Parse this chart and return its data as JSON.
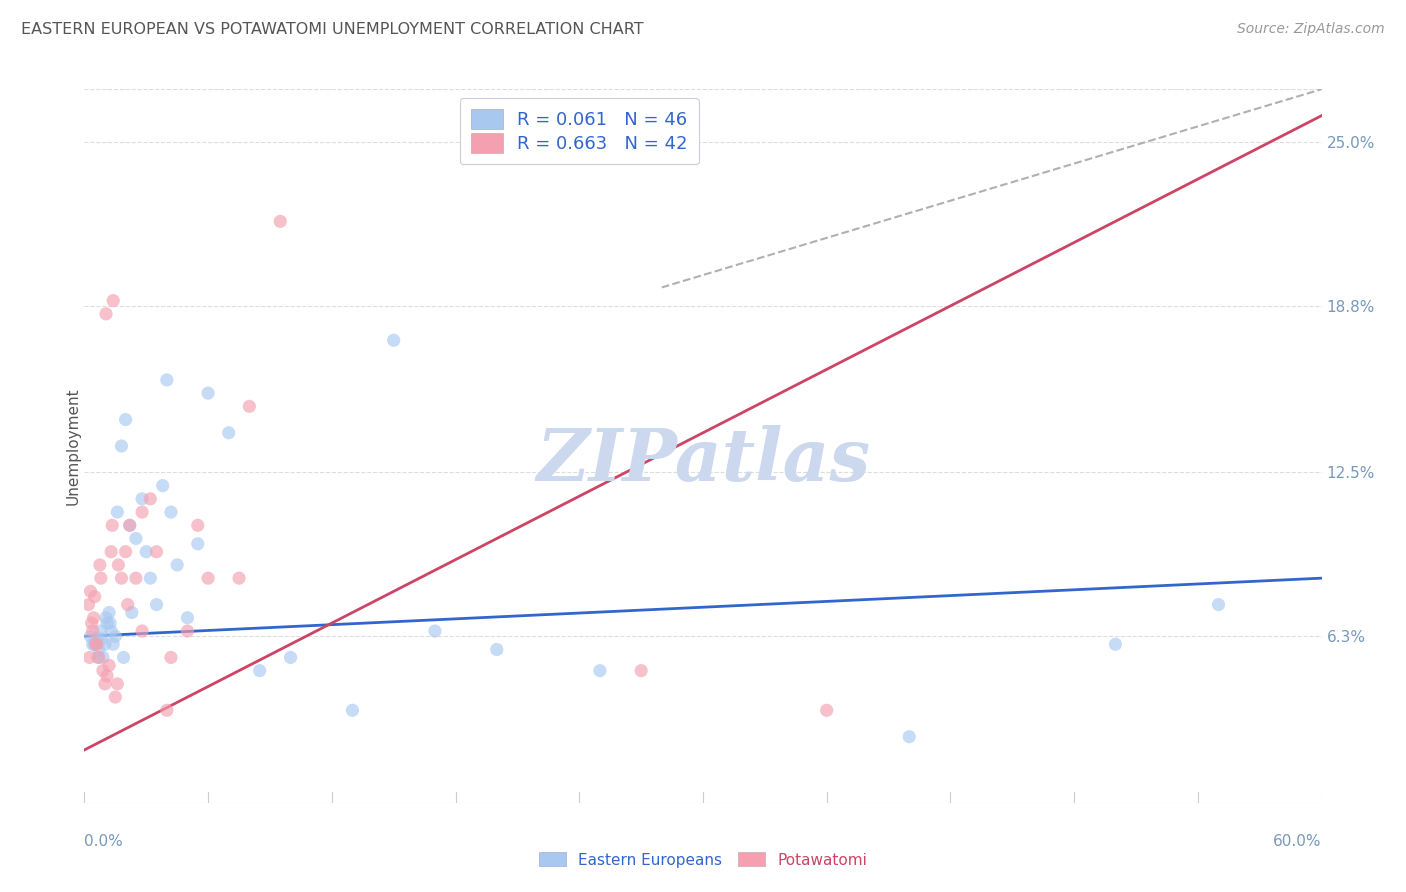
{
  "title": "EASTERN EUROPEAN VS POTAWATOMI UNEMPLOYMENT CORRELATION CHART",
  "source": "Source: ZipAtlas.com",
  "ylabel": "Unemployment",
  "ytick_values": [
    6.3,
    12.5,
    18.8,
    25.0
  ],
  "ytick_labels": [
    "6.3%",
    "12.5%",
    "18.8%",
    "25.0%"
  ],
  "xlim": [
    0.0,
    60.0
  ],
  "ylim": [
    0.0,
    27.0
  ],
  "legend_blue_label": "R = 0.061   N = 46",
  "legend_pink_label": "R = 0.663   N = 42",
  "legend_label_blue": "Eastern Europeans",
  "legend_label_pink": "Potawatomi",
  "blue_scatter_x": [
    0.3,
    0.5,
    0.6,
    0.7,
    0.8,
    0.9,
    1.0,
    1.1,
    1.2,
    1.3,
    1.4,
    1.5,
    1.6,
    1.8,
    2.0,
    2.2,
    2.5,
    2.8,
    3.0,
    3.2,
    3.5,
    3.8,
    4.0,
    4.2,
    4.5,
    5.0,
    5.5,
    6.0,
    7.0,
    8.5,
    10.0,
    13.0,
    15.0,
    17.0,
    20.0,
    25.0,
    40.0,
    50.0,
    55.0,
    0.4,
    0.65,
    0.85,
    1.05,
    1.25,
    1.9,
    2.3
  ],
  "blue_scatter_y": [
    6.3,
    6.0,
    6.2,
    5.8,
    6.5,
    5.5,
    6.0,
    6.8,
    7.2,
    6.5,
    6.0,
    6.3,
    11.0,
    13.5,
    14.5,
    10.5,
    10.0,
    11.5,
    9.5,
    8.5,
    7.5,
    12.0,
    16.0,
    11.0,
    9.0,
    7.0,
    9.8,
    15.5,
    14.0,
    5.0,
    5.5,
    3.5,
    17.5,
    6.5,
    5.8,
    5.0,
    2.5,
    6.0,
    7.5,
    6.0,
    5.5,
    6.2,
    7.0,
    6.8,
    5.5,
    7.2
  ],
  "pink_scatter_x": [
    0.2,
    0.3,
    0.4,
    0.5,
    0.6,
    0.7,
    0.8,
    0.9,
    1.0,
    1.1,
    1.2,
    1.3,
    1.4,
    1.5,
    1.6,
    1.8,
    2.0,
    2.2,
    2.5,
    2.8,
    3.2,
    3.5,
    4.0,
    5.0,
    5.5,
    7.5,
    9.5,
    27.0,
    36.0,
    0.35,
    0.55,
    0.75,
    1.05,
    1.35,
    1.65,
    2.1,
    2.8,
    4.2,
    6.0,
    8.0,
    0.25,
    0.45
  ],
  "pink_scatter_y": [
    7.5,
    8.0,
    6.5,
    7.8,
    6.0,
    5.5,
    8.5,
    5.0,
    4.5,
    4.8,
    5.2,
    9.5,
    19.0,
    4.0,
    4.5,
    8.5,
    9.5,
    10.5,
    8.5,
    11.0,
    11.5,
    9.5,
    3.5,
    6.5,
    10.5,
    8.5,
    22.0,
    5.0,
    3.5,
    6.8,
    6.0,
    9.0,
    18.5,
    10.5,
    9.0,
    7.5,
    6.5,
    5.5,
    8.5,
    15.0,
    5.5,
    7.0
  ],
  "blue_line_x": [
    0.0,
    60.0
  ],
  "blue_line_y": [
    6.3,
    8.5
  ],
  "pink_line_x": [
    0.0,
    60.0
  ],
  "pink_line_y": [
    2.0,
    26.0
  ],
  "diag_line_x": [
    28.0,
    60.0
  ],
  "diag_line_y": [
    19.5,
    27.0
  ],
  "blue_color": "#a8c8f0",
  "pink_color": "#f4a0b0",
  "blue_line_color": "#3366cc",
  "pink_line_color": "#cc4466",
  "diag_line_color": "#b0b0b0",
  "background_color": "#ffffff",
  "grid_color": "#dddddd",
  "title_color": "#555555",
  "axis_label_color": "#7799bb",
  "watermark_color": "#ccd8ee",
  "scatter_size": 90,
  "scatter_alpha": 0.65
}
